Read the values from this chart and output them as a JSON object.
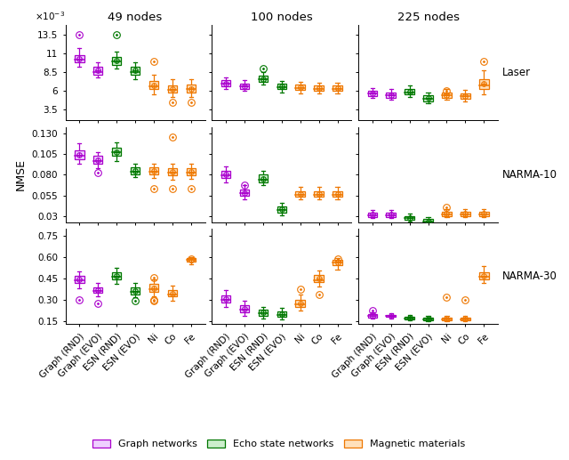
{
  "title_col": [
    "49 nodes",
    "100 nodes",
    "225 nodes"
  ],
  "title_row": [
    "Laser",
    "NARMA-10",
    "NARMA-30"
  ],
  "x_labels": [
    "Graph (RND)",
    "Graph (EVO)",
    "ESN (RND)",
    "ESN (EVO)",
    "Ni",
    "Co",
    "Fe"
  ],
  "purple": "#AA00CC",
  "green": "#007700",
  "orange": "#EE7700",
  "purple_light": "#EED0FF",
  "green_light": "#CCEECC",
  "orange_light": "#FFE0BB",
  "cells": {
    "r0c0": {
      "data": [
        [
          0.0092,
          0.0098,
          0.01005,
          0.01035,
          0.0108,
          0.0118
        ],
        [
          0.0078,
          0.0082,
          0.0083,
          0.0087,
          0.0092,
          0.0098
        ],
        [
          0.009,
          0.0095,
          0.0097,
          0.0101,
          0.0106,
          0.0113
        ],
        [
          0.0075,
          0.0082,
          0.0083,
          0.0088,
          0.0092,
          0.0098
        ],
        [
          0.0055,
          0.0062,
          0.0065,
          0.0068,
          0.0073,
          0.0082
        ],
        [
          0.0052,
          0.0058,
          0.006,
          0.0063,
          0.0067,
          0.0076
        ],
        [
          0.0052,
          0.0058,
          0.0061,
          0.0064,
          0.0068,
          0.0075
        ]
      ],
      "outliers": [
        [
          0.0135
        ],
        [],
        [
          0.0135
        ],
        [],
        [
          0.01
        ],
        [
          0.0045
        ],
        [
          0.0045
        ]
      ],
      "ylim": [
        0.002,
        0.0148
      ],
      "yticks": [
        0.0035,
        0.006,
        0.0085,
        0.011,
        0.0135
      ],
      "yticklabels": [
        "3.5",
        "6",
        "8.5",
        "11",
        "13.5"
      ]
    },
    "r0c1": {
      "data": [
        [
          0.0062,
          0.0066,
          0.0068,
          0.007,
          0.0074,
          0.0078
        ],
        [
          0.006,
          0.0063,
          0.0064,
          0.0067,
          0.007,
          0.0074
        ],
        [
          0.0068,
          0.0072,
          0.0074,
          0.0076,
          0.008,
          0.0085
        ],
        [
          0.0058,
          0.0062,
          0.0063,
          0.0066,
          0.0069,
          0.0073
        ],
        [
          0.0057,
          0.0061,
          0.0062,
          0.0065,
          0.0068,
          0.0072
        ],
        [
          0.0057,
          0.006,
          0.0062,
          0.0064,
          0.0067,
          0.0071
        ],
        [
          0.0057,
          0.006,
          0.0062,
          0.0064,
          0.0067,
          0.0071
        ]
      ],
      "outliers": [
        [],
        [],
        [
          0.009
        ],
        [],
        [],
        [],
        []
      ],
      "ylim": [
        0.002,
        0.0148
      ],
      "yticks": [
        0.0035,
        0.006,
        0.0085,
        0.011,
        0.0135
      ],
      "yticklabels": [
        "3.5",
        "6",
        "8.5",
        "11",
        "13.5"
      ]
    },
    "r0c2": {
      "data": [
        [
          0.005,
          0.0053,
          0.0055,
          0.0057,
          0.006,
          0.0064
        ],
        [
          0.0048,
          0.0051,
          0.0053,
          0.0055,
          0.0058,
          0.0062
        ],
        [
          0.0052,
          0.0055,
          0.0057,
          0.0059,
          0.0062,
          0.0067
        ],
        [
          0.0043,
          0.0046,
          0.0048,
          0.0051,
          0.0054,
          0.0058
        ],
        [
          0.0048,
          0.0051,
          0.0053,
          0.0055,
          0.0058,
          0.0063
        ],
        [
          0.0046,
          0.0049,
          0.0051,
          0.0054,
          0.0057,
          0.0061
        ],
        [
          0.0055,
          0.0062,
          0.0065,
          0.007,
          0.0076,
          0.0088
        ]
      ],
      "outliers": [
        [],
        [],
        [],
        [],
        [
          0.006
        ],
        [],
        [
          0.01
        ]
      ],
      "ylim": [
        0.002,
        0.0148
      ],
      "yticks": [
        0.0035,
        0.006,
        0.0085,
        0.011,
        0.0135
      ],
      "yticklabels": [
        "3.5",
        "6",
        "8.5",
        "11",
        "13.5"
      ]
    },
    "r1c0": {
      "data": [
        [
          0.093,
          0.099,
          0.102,
          0.105,
          0.11,
          0.118
        ],
        [
          0.088,
          0.093,
          0.095,
          0.098,
          0.103,
          0.108
        ],
        [
          0.097,
          0.103,
          0.106,
          0.109,
          0.113,
          0.12
        ],
        [
          0.077,
          0.081,
          0.082,
          0.085,
          0.089,
          0.094
        ],
        [
          0.076,
          0.081,
          0.082,
          0.085,
          0.089,
          0.094
        ],
        [
          0.074,
          0.079,
          0.081,
          0.084,
          0.088,
          0.093
        ],
        [
          0.075,
          0.079,
          0.081,
          0.084,
          0.088,
          0.094
        ]
      ],
      "outliers": [
        [],
        [
          0.083
        ],
        [],
        [],
        [
          0.063
        ],
        [
          0.126,
          0.063
        ],
        [
          0.063
        ]
      ],
      "ylim": [
        0.022,
        0.138
      ],
      "yticks": [
        0.03,
        0.055,
        0.08,
        0.105,
        0.13
      ],
      "yticklabels": [
        "0.03",
        "0.055",
        "0.080",
        "0.105",
        "0.130"
      ]
    },
    "r1c1": {
      "data": [
        [
          0.071,
          0.076,
          0.078,
          0.081,
          0.085,
          0.09
        ],
        [
          0.05,
          0.054,
          0.056,
          0.059,
          0.062,
          0.067
        ],
        [
          0.067,
          0.071,
          0.073,
          0.076,
          0.08,
          0.085
        ],
        [
          0.031,
          0.034,
          0.036,
          0.039,
          0.042,
          0.046
        ],
        [
          0.05,
          0.053,
          0.055,
          0.057,
          0.06,
          0.065
        ],
        [
          0.05,
          0.053,
          0.055,
          0.057,
          0.06,
          0.065
        ],
        [
          0.05,
          0.053,
          0.055,
          0.057,
          0.06,
          0.065
        ]
      ],
      "outliers": [
        [],
        [
          0.067
        ],
        [],
        [],
        [],
        [],
        []
      ],
      "ylim": [
        0.022,
        0.138
      ],
      "yticks": [
        0.03,
        0.055,
        0.08,
        0.105,
        0.13
      ],
      "yticklabels": [
        "0.03",
        "0.055",
        "0.080",
        "0.105",
        "0.130"
      ]
    },
    "r1c2": {
      "data": [
        [
          0.027,
          0.029,
          0.03,
          0.032,
          0.034,
          0.037
        ],
        [
          0.027,
          0.029,
          0.03,
          0.032,
          0.034,
          0.037
        ],
        [
          0.023,
          0.025,
          0.026,
          0.028,
          0.03,
          0.033
        ],
        [
          0.019,
          0.021,
          0.022,
          0.024,
          0.026,
          0.029
        ],
        [
          0.028,
          0.03,
          0.031,
          0.033,
          0.035,
          0.038
        ],
        [
          0.028,
          0.03,
          0.031,
          0.033,
          0.035,
          0.038
        ],
        [
          0.028,
          0.03,
          0.031,
          0.033,
          0.035,
          0.038
        ]
      ],
      "outliers": [
        [],
        [],
        [],
        [],
        [
          0.04
        ],
        [],
        []
      ],
      "ylim": [
        0.022,
        0.138
      ],
      "yticks": [
        0.03,
        0.055,
        0.08,
        0.105,
        0.13
      ],
      "yticklabels": [
        "0.03",
        "0.055",
        "0.080",
        "0.105",
        "0.130"
      ]
    },
    "r2c0": {
      "data": [
        [
          0.385,
          0.418,
          0.43,
          0.445,
          0.468,
          0.505
        ],
        [
          0.325,
          0.352,
          0.36,
          0.372,
          0.392,
          0.418
        ],
        [
          0.415,
          0.445,
          0.455,
          0.475,
          0.498,
          0.528
        ],
        [
          0.318,
          0.342,
          0.352,
          0.368,
          0.39,
          0.418
        ],
        [
          0.33,
          0.36,
          0.372,
          0.388,
          0.412,
          0.448
        ],
        [
          0.295,
          0.325,
          0.335,
          0.35,
          0.372,
          0.405
        ],
        [
          0.555,
          0.57,
          0.578,
          0.586,
          0.595,
          0.6
        ]
      ],
      "outliers": [
        [
          0.305
        ],
        [
          0.28
        ],
        [],
        [
          0.295
        ],
        [
          0.295,
          0.46,
          0.3
        ],
        [],
        [
          0.59
        ]
      ],
      "ylim": [
        0.13,
        0.8
      ],
      "yticks": [
        0.15,
        0.3,
        0.45,
        0.6,
        0.75
      ],
      "yticklabels": [
        "0.15",
        "0.30",
        "0.45",
        "0.60",
        "0.75"
      ]
    },
    "r2c1": {
      "data": [
        [
          0.255,
          0.285,
          0.295,
          0.31,
          0.335,
          0.368
        ],
        [
          0.188,
          0.215,
          0.225,
          0.24,
          0.262,
          0.295
        ],
        [
          0.172,
          0.192,
          0.2,
          0.212,
          0.232,
          0.255
        ],
        [
          0.162,
          0.182,
          0.19,
          0.202,
          0.222,
          0.245
        ],
        [
          0.225,
          0.255,
          0.265,
          0.28,
          0.305,
          0.338
        ],
        [
          0.395,
          0.425,
          0.435,
          0.45,
          0.475,
          0.51
        ],
        [
          0.515,
          0.545,
          0.558,
          0.568,
          0.582,
          0.595
        ]
      ],
      "outliers": [
        [],
        [],
        [],
        [],
        [
          0.375
        ],
        [
          0.34
        ],
        [
          0.59
        ]
      ],
      "ylim": [
        0.13,
        0.8
      ],
      "yticks": [
        0.15,
        0.3,
        0.45,
        0.6,
        0.75
      ],
      "yticklabels": [
        "0.15",
        "0.30",
        "0.45",
        "0.60",
        "0.75"
      ]
    },
    "r2c2": {
      "data": [
        [
          0.168,
          0.178,
          0.183,
          0.19,
          0.2,
          0.215
        ],
        [
          0.172,
          0.18,
          0.185,
          0.19,
          0.198,
          0.21
        ],
        [
          0.158,
          0.166,
          0.17,
          0.176,
          0.184,
          0.196
        ],
        [
          0.152,
          0.16,
          0.164,
          0.17,
          0.178,
          0.19
        ],
        [
          0.152,
          0.16,
          0.164,
          0.17,
          0.178,
          0.19
        ],
        [
          0.152,
          0.16,
          0.164,
          0.17,
          0.178,
          0.19
        ],
        [
          0.418,
          0.445,
          0.455,
          0.472,
          0.495,
          0.54
        ]
      ],
      "outliers": [
        [
          0.23
        ],
        [],
        [],
        [],
        [
          0.32
        ],
        [
          0.305
        ],
        []
      ],
      "ylim": [
        0.13,
        0.8
      ],
      "yticks": [
        0.15,
        0.3,
        0.45,
        0.6,
        0.75
      ],
      "yticklabels": [
        "0.15",
        "0.30",
        "0.45",
        "0.60",
        "0.75"
      ]
    }
  }
}
